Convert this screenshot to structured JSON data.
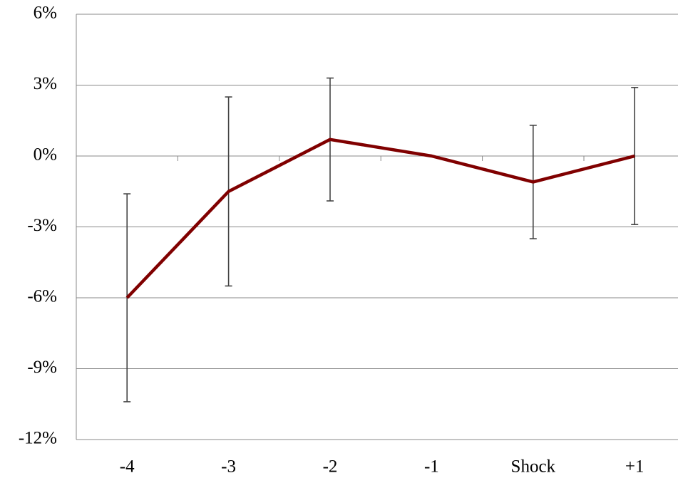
{
  "chart_data": {
    "type": "line",
    "categories": [
      "-4",
      "-3",
      "-2",
      "-1",
      "Shock",
      "+1"
    ],
    "series": [
      {
        "color": "#800000",
        "values": [
          -6,
          -1.5,
          0.7,
          0,
          -1.1,
          0
        ],
        "errors": [
          4.4,
          4.0,
          2.6,
          null,
          2.4,
          2.9
        ]
      }
    ],
    "ylim": [
      -12,
      6
    ],
    "yticks": [
      {
        "value": -12,
        "label": "-12%"
      },
      {
        "value": -9,
        "label": "-9%"
      },
      {
        "value": -6,
        "label": "-6%"
      },
      {
        "value": -3,
        "label": "-3%"
      },
      {
        "value": 0,
        "label": "0%"
      },
      {
        "value": 3,
        "label": "3%"
      },
      {
        "value": 6,
        "label": "6%"
      }
    ],
    "grid": true
  }
}
